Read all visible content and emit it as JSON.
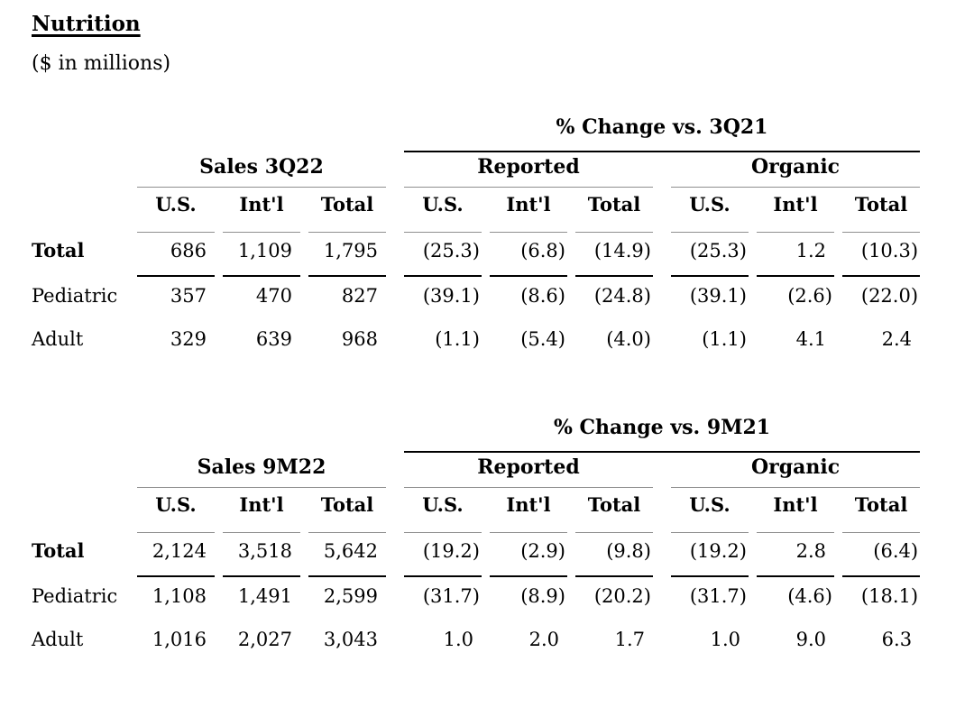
{
  "title": "Nutrition",
  "subtitle": "($ in millions)",
  "colors": {
    "text": "#000000",
    "thick_rule": "#000000",
    "thin_rule": "#8f8f8f"
  },
  "tables": [
    {
      "pct_change_title": "% Change vs. 3Q21",
      "sales_title": "Sales 3Q22",
      "reported_title": "Reported",
      "organic_title": "Organic",
      "col_headers": [
        "U.S.",
        "Int'l",
        "Total",
        "U.S.",
        "Int'l",
        "Total",
        "U.S.",
        "Int'l",
        "Total"
      ],
      "rows": [
        {
          "label": "Total",
          "values": [
            "686",
            "1,109",
            "1,795",
            "(25.3)",
            "(6.8)",
            "(14.9)",
            "(25.3)",
            "1.2",
            "(10.3)"
          ]
        },
        {
          "label": "Pediatric",
          "values": [
            "357",
            "470",
            "827",
            "(39.1)",
            "(8.6)",
            "(24.8)",
            "(39.1)",
            "(2.6)",
            "(22.0)"
          ]
        },
        {
          "label": "Adult",
          "values": [
            "329",
            "639",
            "968",
            "(1.1)",
            "(5.4)",
            "(4.0)",
            "(1.1)",
            "4.1",
            "2.4"
          ]
        }
      ]
    },
    {
      "pct_change_title": "% Change vs. 9M21",
      "sales_title": "Sales 9M22",
      "reported_title": "Reported",
      "organic_title": "Organic",
      "col_headers": [
        "U.S.",
        "Int'l",
        "Total",
        "U.S.",
        "Int'l",
        "Total",
        "U.S.",
        "Int'l",
        "Total"
      ],
      "rows": [
        {
          "label": "Total",
          "values": [
            "2,124",
            "3,518",
            "5,642",
            "(19.2)",
            "(2.9)",
            "(9.8)",
            "(19.2)",
            "2.8",
            "(6.4)"
          ]
        },
        {
          "label": "Pediatric",
          "values": [
            "1,108",
            "1,491",
            "2,599",
            "(31.7)",
            "(8.9)",
            "(20.2)",
            "(31.7)",
            "(4.6)",
            "(18.1)"
          ]
        },
        {
          "label": "Adult",
          "values": [
            "1,016",
            "2,027",
            "3,043",
            "1.0",
            "2.0",
            "1.7",
            "1.0",
            "9.0",
            "6.3"
          ]
        }
      ]
    }
  ]
}
